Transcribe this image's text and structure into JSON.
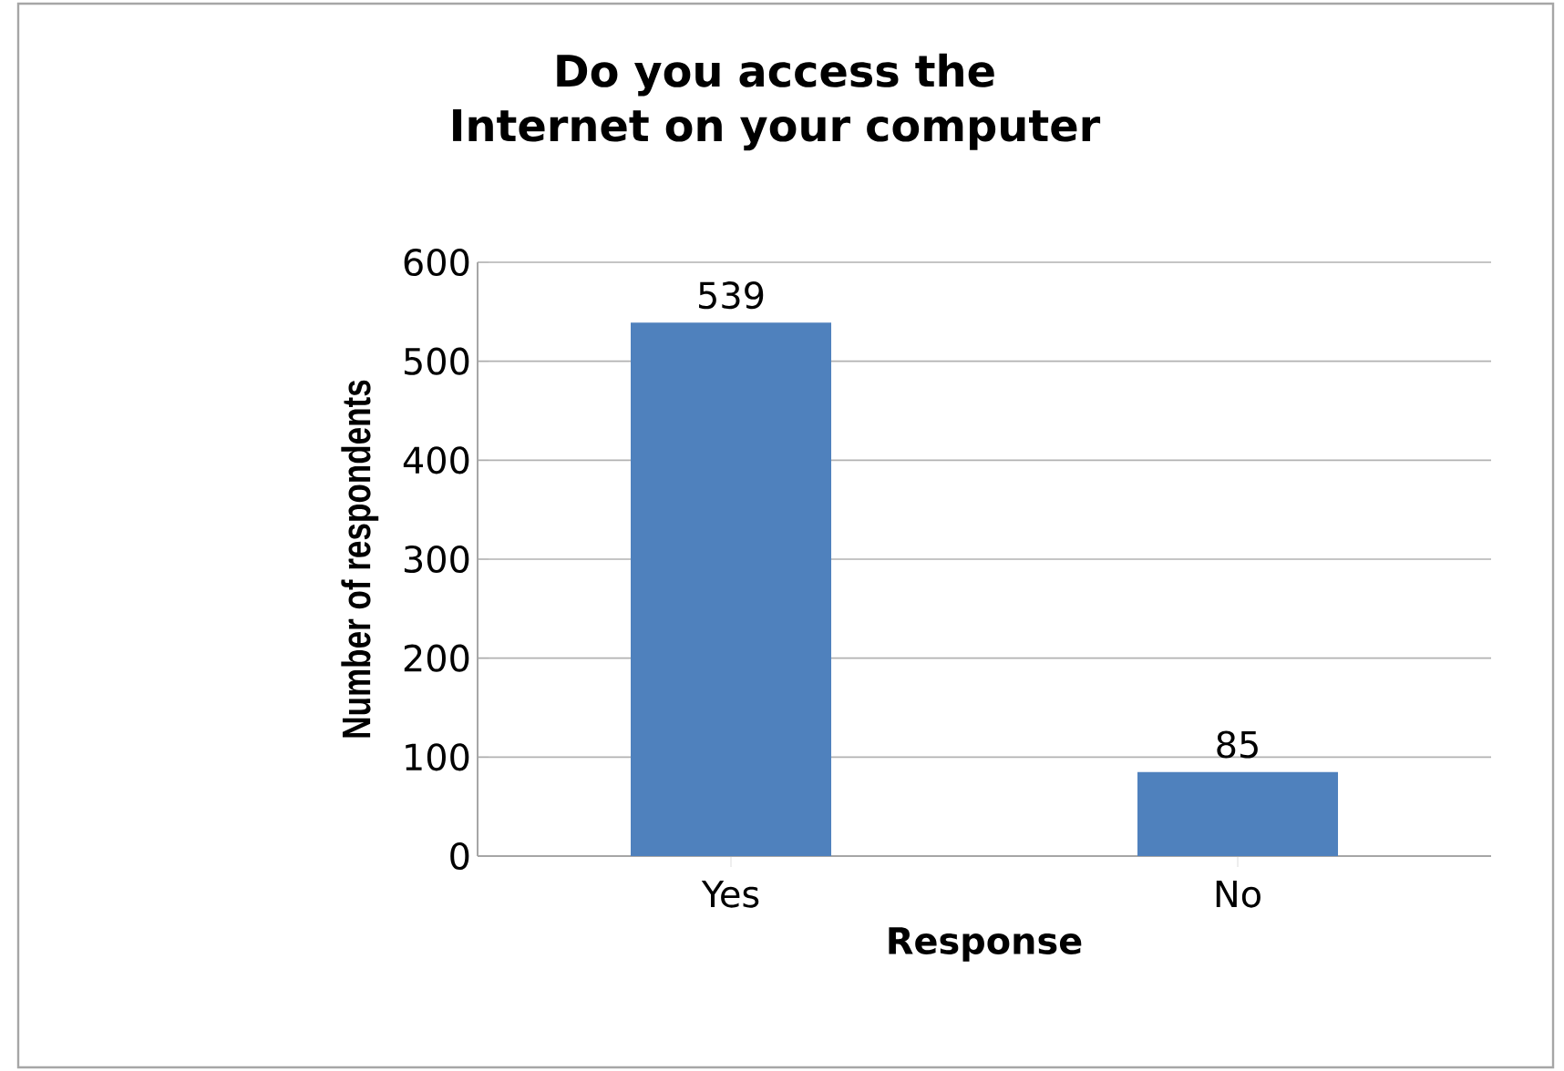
{
  "chart_data": {
    "type": "bar",
    "title": "Do you access the Internet on your computer",
    "xlabel": "Response",
    "ylabel": "Number of respondents",
    "categories": [
      "Yes",
      "No"
    ],
    "values": [
      539,
      85
    ],
    "color": "#4f81bd",
    "ylim": [
      0,
      600
    ],
    "yticks": [
      0,
      100,
      200,
      300,
      400,
      500,
      600
    ],
    "grid": "y",
    "data_labels": true
  }
}
